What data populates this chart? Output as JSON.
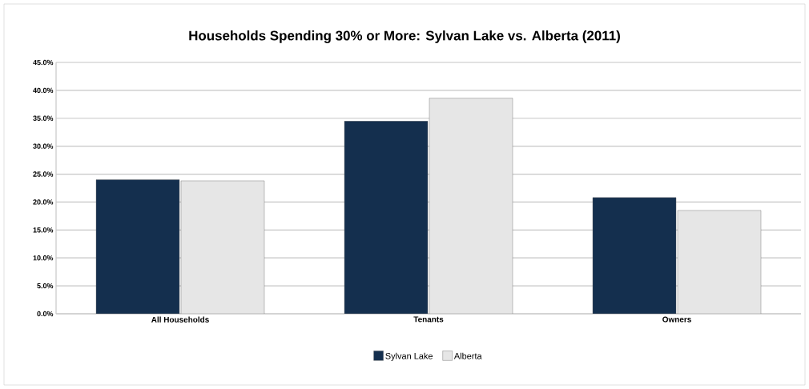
{
  "chart_data": {
    "type": "bar",
    "title": "Households Spending 30% or More: Sylvan Lake vs. Alberta (2011)",
    "categories": [
      "All Households",
      "Tenants",
      "Owners"
    ],
    "series": [
      {
        "name": "Sylvan Lake",
        "color": "#142f4e",
        "values": [
          24.0,
          34.5,
          20.8
        ]
      },
      {
        "name": "Alberta",
        "color": "#e6e6e6",
        "values": [
          23.8,
          38.6,
          18.5
        ]
      }
    ],
    "ylim": [
      0,
      45
    ],
    "yticks": [
      {
        "value": 0,
        "label": "0.0%"
      },
      {
        "value": 5,
        "label": "5.0%"
      },
      {
        "value": 10,
        "label": "10.0%"
      },
      {
        "value": 15,
        "label": "15.0%"
      },
      {
        "value": 20,
        "label": "20.0%"
      },
      {
        "value": 25,
        "label": "25.0%"
      },
      {
        "value": 30,
        "label": "30.0%"
      },
      {
        "value": 35,
        "label": "35.0%"
      },
      {
        "value": 40,
        "label": "40.0%"
      },
      {
        "value": 45,
        "label": "45.0%"
      }
    ],
    "grid": "y",
    "legend": "bottom"
  }
}
